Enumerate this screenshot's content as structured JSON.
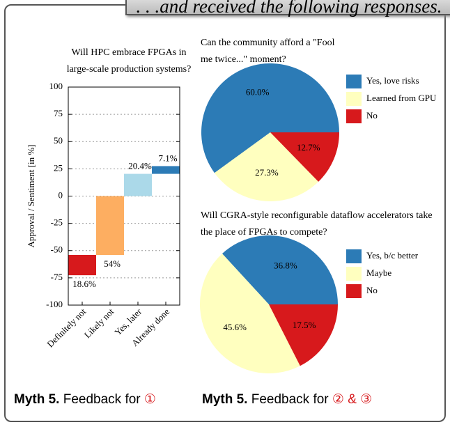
{
  "header": ". . .and received the following responses.",
  "chart_data": [
    {
      "type": "bar",
      "title": "Will HPC embrace FPGAs in large-scale production systems?",
      "ylabel": "Approval / Sentiment [in %]",
      "categories": [
        "Definitely not",
        "Likely not",
        "Yes, later",
        "Already done"
      ],
      "values": [
        -18.6,
        -54,
        20.4,
        7.1
      ],
      "value_labels": [
        "18.6%",
        "54%",
        "20.4%",
        "7.1%"
      ],
      "colors": [
        "#d7191c",
        "#fdae61",
        "#abd9e9",
        "#2c7bb6"
      ],
      "ylim": [
        -100,
        100
      ],
      "yticks": [
        100,
        75,
        50,
        25,
        0,
        -25,
        -50,
        -75,
        -100
      ],
      "grid": true
    },
    {
      "type": "pie",
      "title": "Can the community afford a \"Fool me twice...\" moment?",
      "series": [
        {
          "name": "Yes, love risks",
          "color": "#2c7bb6",
          "values": [
            60.0
          ],
          "value_labels": [
            "60.0%"
          ]
        },
        {
          "name": "Learned from GPU",
          "color": "#ffffbf",
          "values": [
            27.3
          ],
          "value_labels": [
            "27.3%"
          ]
        },
        {
          "name": "No",
          "color": "#d7191c",
          "values": [
            12.7
          ],
          "value_labels": [
            "12.7%"
          ]
        }
      ]
    },
    {
      "type": "pie",
      "title": "Will CGRA-style reconfigurable dataflow accelerators take the place of FPGAs to compete?",
      "series": [
        {
          "name": "Yes, b/c better",
          "color": "#2c7bb6",
          "values": [
            36.8
          ],
          "value_labels": [
            "36.8%"
          ]
        },
        {
          "name": "Maybe",
          "color": "#ffffbf",
          "values": [
            45.6
          ],
          "value_labels": [
            "45.6%"
          ]
        },
        {
          "name": "No",
          "color": "#d7191c",
          "values": [
            17.5
          ],
          "value_labels": [
            "17.5%"
          ]
        }
      ]
    }
  ],
  "captions": [
    {
      "bold": "Myth 5.",
      "text": "Feedback for",
      "mark": "①"
    },
    {
      "bold": "Myth 5.",
      "text": "Feedback for",
      "mark": "② & ③"
    }
  ]
}
